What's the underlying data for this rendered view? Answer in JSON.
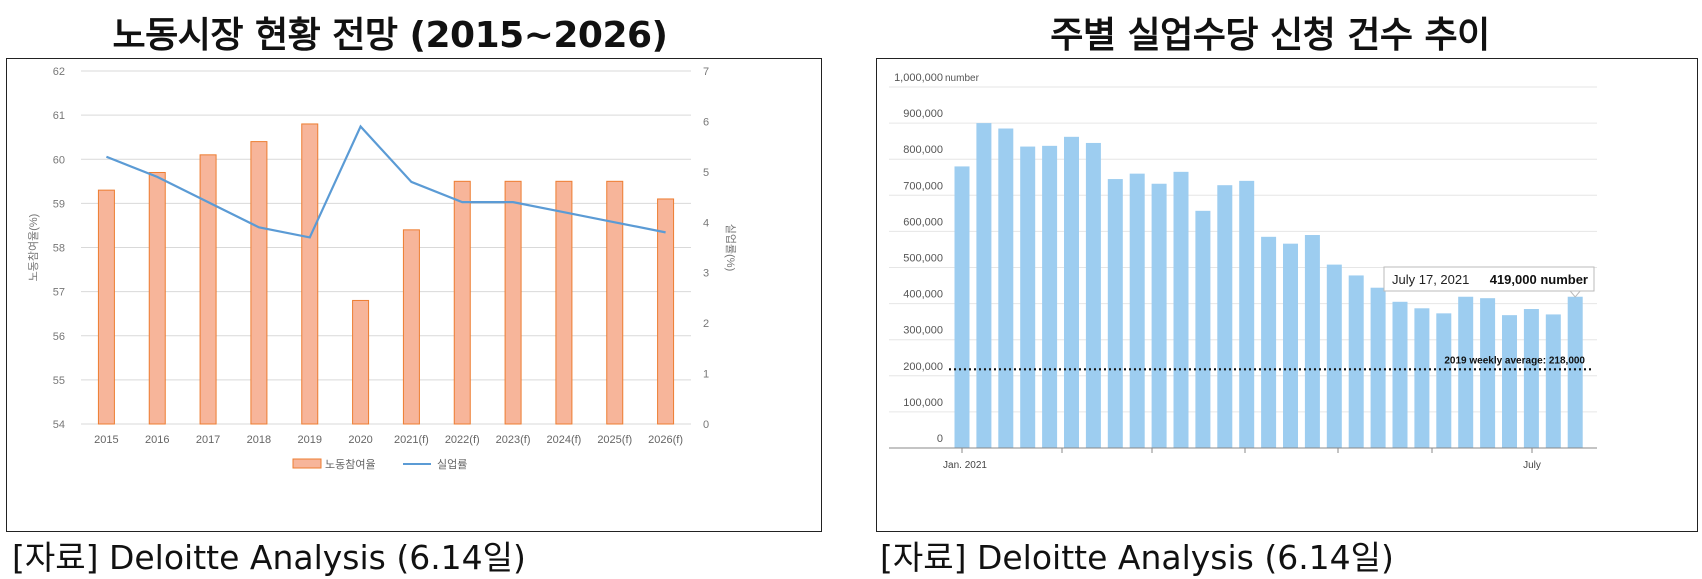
{
  "charts_titles": {
    "left": "노동시장 현황 전망 (2015~2026)",
    "right": "주별 실업수당 신청 건수 추이"
  },
  "sources": {
    "left": "[자료] Deloitte Analysis (6.14일)",
    "right": "[자료] Deloitte Analysis (6.14일)"
  },
  "colors": {
    "bar_fill": "#F7B59A",
    "bar_stroke": "#ED7D31",
    "line": "#5B9BD5",
    "weekly_bar": "#9DCDF0",
    "grid": "#D9D9D9"
  },
  "chart_data": [
    {
      "type": "bar",
      "title": "노동시장 현황 전망 (2015~2026)",
      "categories": [
        "2015",
        "2016",
        "2017",
        "2018",
        "2019",
        "2020",
        "2021(f)",
        "2022(f)",
        "2023(f)",
        "2024(f)",
        "2025(f)",
        "2026(f)"
      ],
      "series": [
        {
          "name": "노동참여율",
          "type": "bar",
          "axis": "left",
          "values": [
            59.3,
            59.7,
            60.1,
            60.4,
            60.8,
            56.8,
            58.4,
            59.5,
            59.5,
            59.5,
            59.5,
            59.1
          ]
        },
        {
          "name": "실업률",
          "type": "line",
          "axis": "right",
          "values": [
            5.3,
            4.9,
            4.4,
            3.9,
            3.7,
            5.9,
            4.8,
            4.4,
            4.4,
            4.2,
            4.0,
            3.8
          ]
        }
      ],
      "ylabel": "노동참여율(%)",
      "y2label": "실업률(%)",
      "ylim": [
        54,
        62
      ],
      "yticks": [
        "54",
        "55",
        "56",
        "57",
        "58",
        "59",
        "60",
        "61",
        "62"
      ],
      "y2lim": [
        0,
        7
      ],
      "y2ticks": [
        "0",
        "1",
        "2",
        "3",
        "4",
        "5",
        "6",
        "7"
      ],
      "grid": true,
      "legend": "bottom"
    },
    {
      "type": "bar",
      "title": "주별 실업수당 신청 건수 추이",
      "values": [
        780000,
        900000,
        885000,
        835000,
        837000,
        862000,
        845000,
        745000,
        760000,
        732000,
        765000,
        657000,
        728000,
        740000,
        585000,
        566000,
        590000,
        508000,
        478000,
        444000,
        405000,
        387000,
        373000,
        419000,
        415000,
        368000,
        385000,
        370000,
        419000
      ],
      "ylim": [
        0,
        1000000
      ],
      "yticks": [
        "0",
        "100,000",
        "200,000",
        "300,000",
        "400,000",
        "500,000",
        "600,000",
        "700,000",
        "800,000",
        "900,000",
        "1,000,000"
      ],
      "yunit": "number",
      "xticks": [
        "Jan. 2021",
        "July"
      ],
      "reference_line": {
        "value": 218000,
        "label": "2019 weekly average: 218,000"
      },
      "annotation": {
        "date": "July 17, 2021",
        "value_text": "419,000 number"
      },
      "grid": true
    }
  ]
}
